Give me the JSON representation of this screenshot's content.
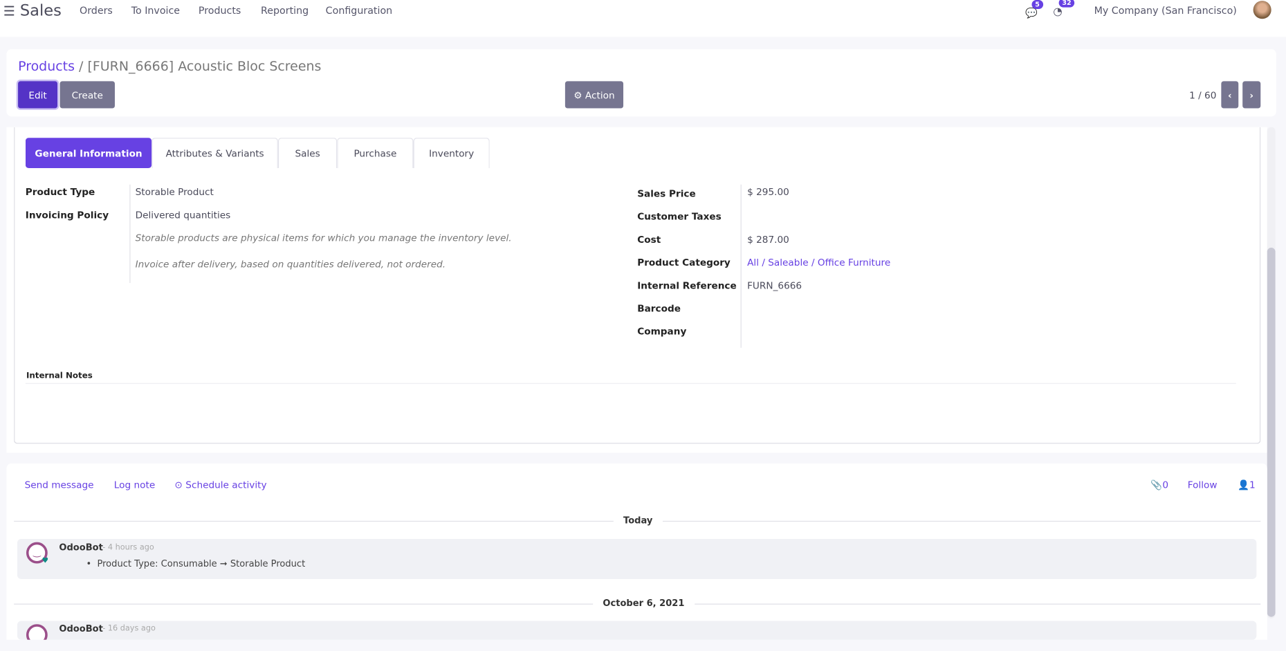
{
  "nav": {
    "app": "Sales",
    "menu": [
      "Orders",
      "To Invoice",
      "Products",
      "Reporting",
      "Configuration"
    ],
    "messages_count": "5",
    "activities_count": "32",
    "company": "My Company (San Francisco)"
  },
  "control": {
    "breadcrumb_root": "Products",
    "breadcrumb_current": "/ [FURN_6666] Acoustic Bloc Screens",
    "edit": "Edit",
    "create": "Create",
    "action": "Action",
    "pager": "1 / 60"
  },
  "tabs": [
    "General Information",
    "Attributes & Variants",
    "Sales",
    "Purchase",
    "Inventory"
  ],
  "left_fields": [
    {
      "label": "Product Type",
      "value": "Storable Product"
    },
    {
      "label": "Invoicing Policy",
      "value": "Delivered quantities"
    }
  ],
  "help": [
    "Storable products are physical items for which you manage the inventory level.",
    "Invoice after delivery, based on quantities delivered, not ordered."
  ],
  "right_fields": [
    {
      "label": "Sales Price",
      "value": "$ 295.00"
    },
    {
      "label": "Customer Taxes",
      "value": ""
    },
    {
      "label": "Cost",
      "value": "$ 287.00"
    },
    {
      "label": "Product Category",
      "value": "All / Saleable / Office Furniture"
    },
    {
      "label": "Internal Reference",
      "value": "FURN_6666"
    },
    {
      "label": "Barcode",
      "value": ""
    },
    {
      "label": "Company",
      "value": ""
    }
  ],
  "internal_notes": "Internal Notes",
  "chatter": {
    "send": "Send message",
    "log": "Log note",
    "schedule": "Schedule activity",
    "attachments": "0",
    "follow": "Follow",
    "followers": "1",
    "groups": [
      {
        "date": "Today",
        "author": "OdooBot",
        "time": "- 4 hours ago",
        "change": "Product Type: Consumable ➞ Storable Product"
      },
      {
        "date": "October 6, 2021",
        "author": "OdooBot",
        "time": "- 16 days ago"
      }
    ]
  },
  "colors": {
    "accent": "#6741e3",
    "edit": "#5433c6",
    "secondary": "#767590"
  }
}
